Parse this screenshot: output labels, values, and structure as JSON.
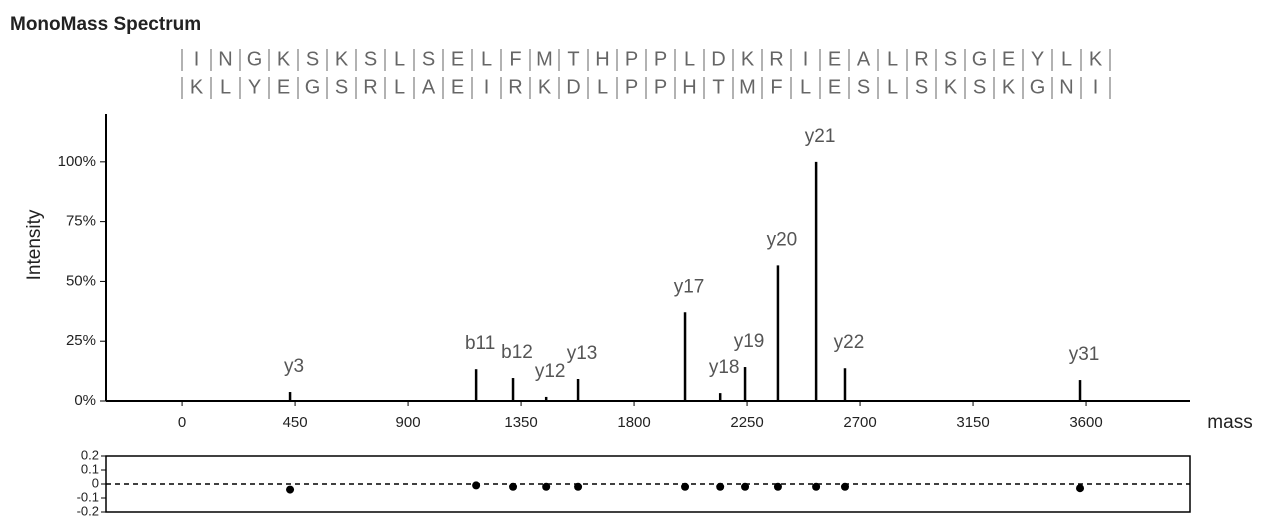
{
  "title": "MonoMass Spectrum",
  "sequence": {
    "forward": [
      "I",
      "N",
      "G",
      "K",
      "S",
      "K",
      "S",
      "L",
      "S",
      "E",
      "L",
      "F",
      "M",
      "T",
      "H",
      "P",
      "P",
      "L",
      "D",
      "K",
      "R",
      "I",
      "E",
      "A",
      "L",
      "R",
      "S",
      "G",
      "E",
      "Y",
      "L",
      "K"
    ],
    "reverse": [
      "K",
      "L",
      "Y",
      "E",
      "G",
      "S",
      "R",
      "L",
      "A",
      "E",
      "I",
      "R",
      "K",
      "D",
      "L",
      "P",
      "P",
      "H",
      "T",
      "M",
      "F",
      "L",
      "E",
      "S",
      "L",
      "S",
      "K",
      "S",
      "K",
      "G",
      "N",
      "I"
    ]
  },
  "chart_data": [
    {
      "type": "bar",
      "xlabel": "mass",
      "ylabel": "Intensity",
      "color": "#000000",
      "x": [
        430,
        1171,
        1318,
        1450,
        1577,
        2003,
        2143,
        2242,
        2373,
        2525,
        2640,
        3576
      ],
      "values": [
        3.75,
        13.3,
        9.6,
        1.7,
        9.2,
        37.1,
        3.3,
        14.2,
        56.7,
        100,
        13.7,
        8.75
      ],
      "labels": [
        "y3",
        "b11",
        "b12",
        "y12",
        "y13",
        "y17",
        "y18",
        "y19",
        "y20",
        "y21",
        "y22",
        "y31"
      ],
      "xlim": [
        -303,
        4014
      ],
      "ylim": [
        0,
        120
      ],
      "xticks": [
        0,
        450,
        900,
        1350,
        1800,
        2250,
        2700,
        3150,
        3600
      ],
      "yticks": [
        {
          "value": 0,
          "label": "0%"
        },
        {
          "value": 25,
          "label": "25%"
        },
        {
          "value": 50,
          "label": "50%"
        },
        {
          "value": 75,
          "label": "75%"
        },
        {
          "value": 100,
          "label": "100%"
        }
      ]
    },
    {
      "type": "scatter",
      "color": "#000000",
      "x": [
        430,
        1171,
        1318,
        1450,
        1577,
        2003,
        2143,
        2242,
        2373,
        2525,
        2640,
        3576
      ],
      "values": [
        -0.04,
        -0.01,
        -0.02,
        -0.02,
        -0.02,
        -0.02,
        -0.02,
        -0.02,
        -0.02,
        -0.02,
        -0.02,
        -0.03
      ],
      "xlim": [
        -303,
        4014
      ],
      "ylim": [
        -0.2,
        0.2
      ],
      "yticks": [
        0.2,
        0.1,
        0,
        -0.1,
        -0.2
      ],
      "reference_line": 0
    }
  ]
}
